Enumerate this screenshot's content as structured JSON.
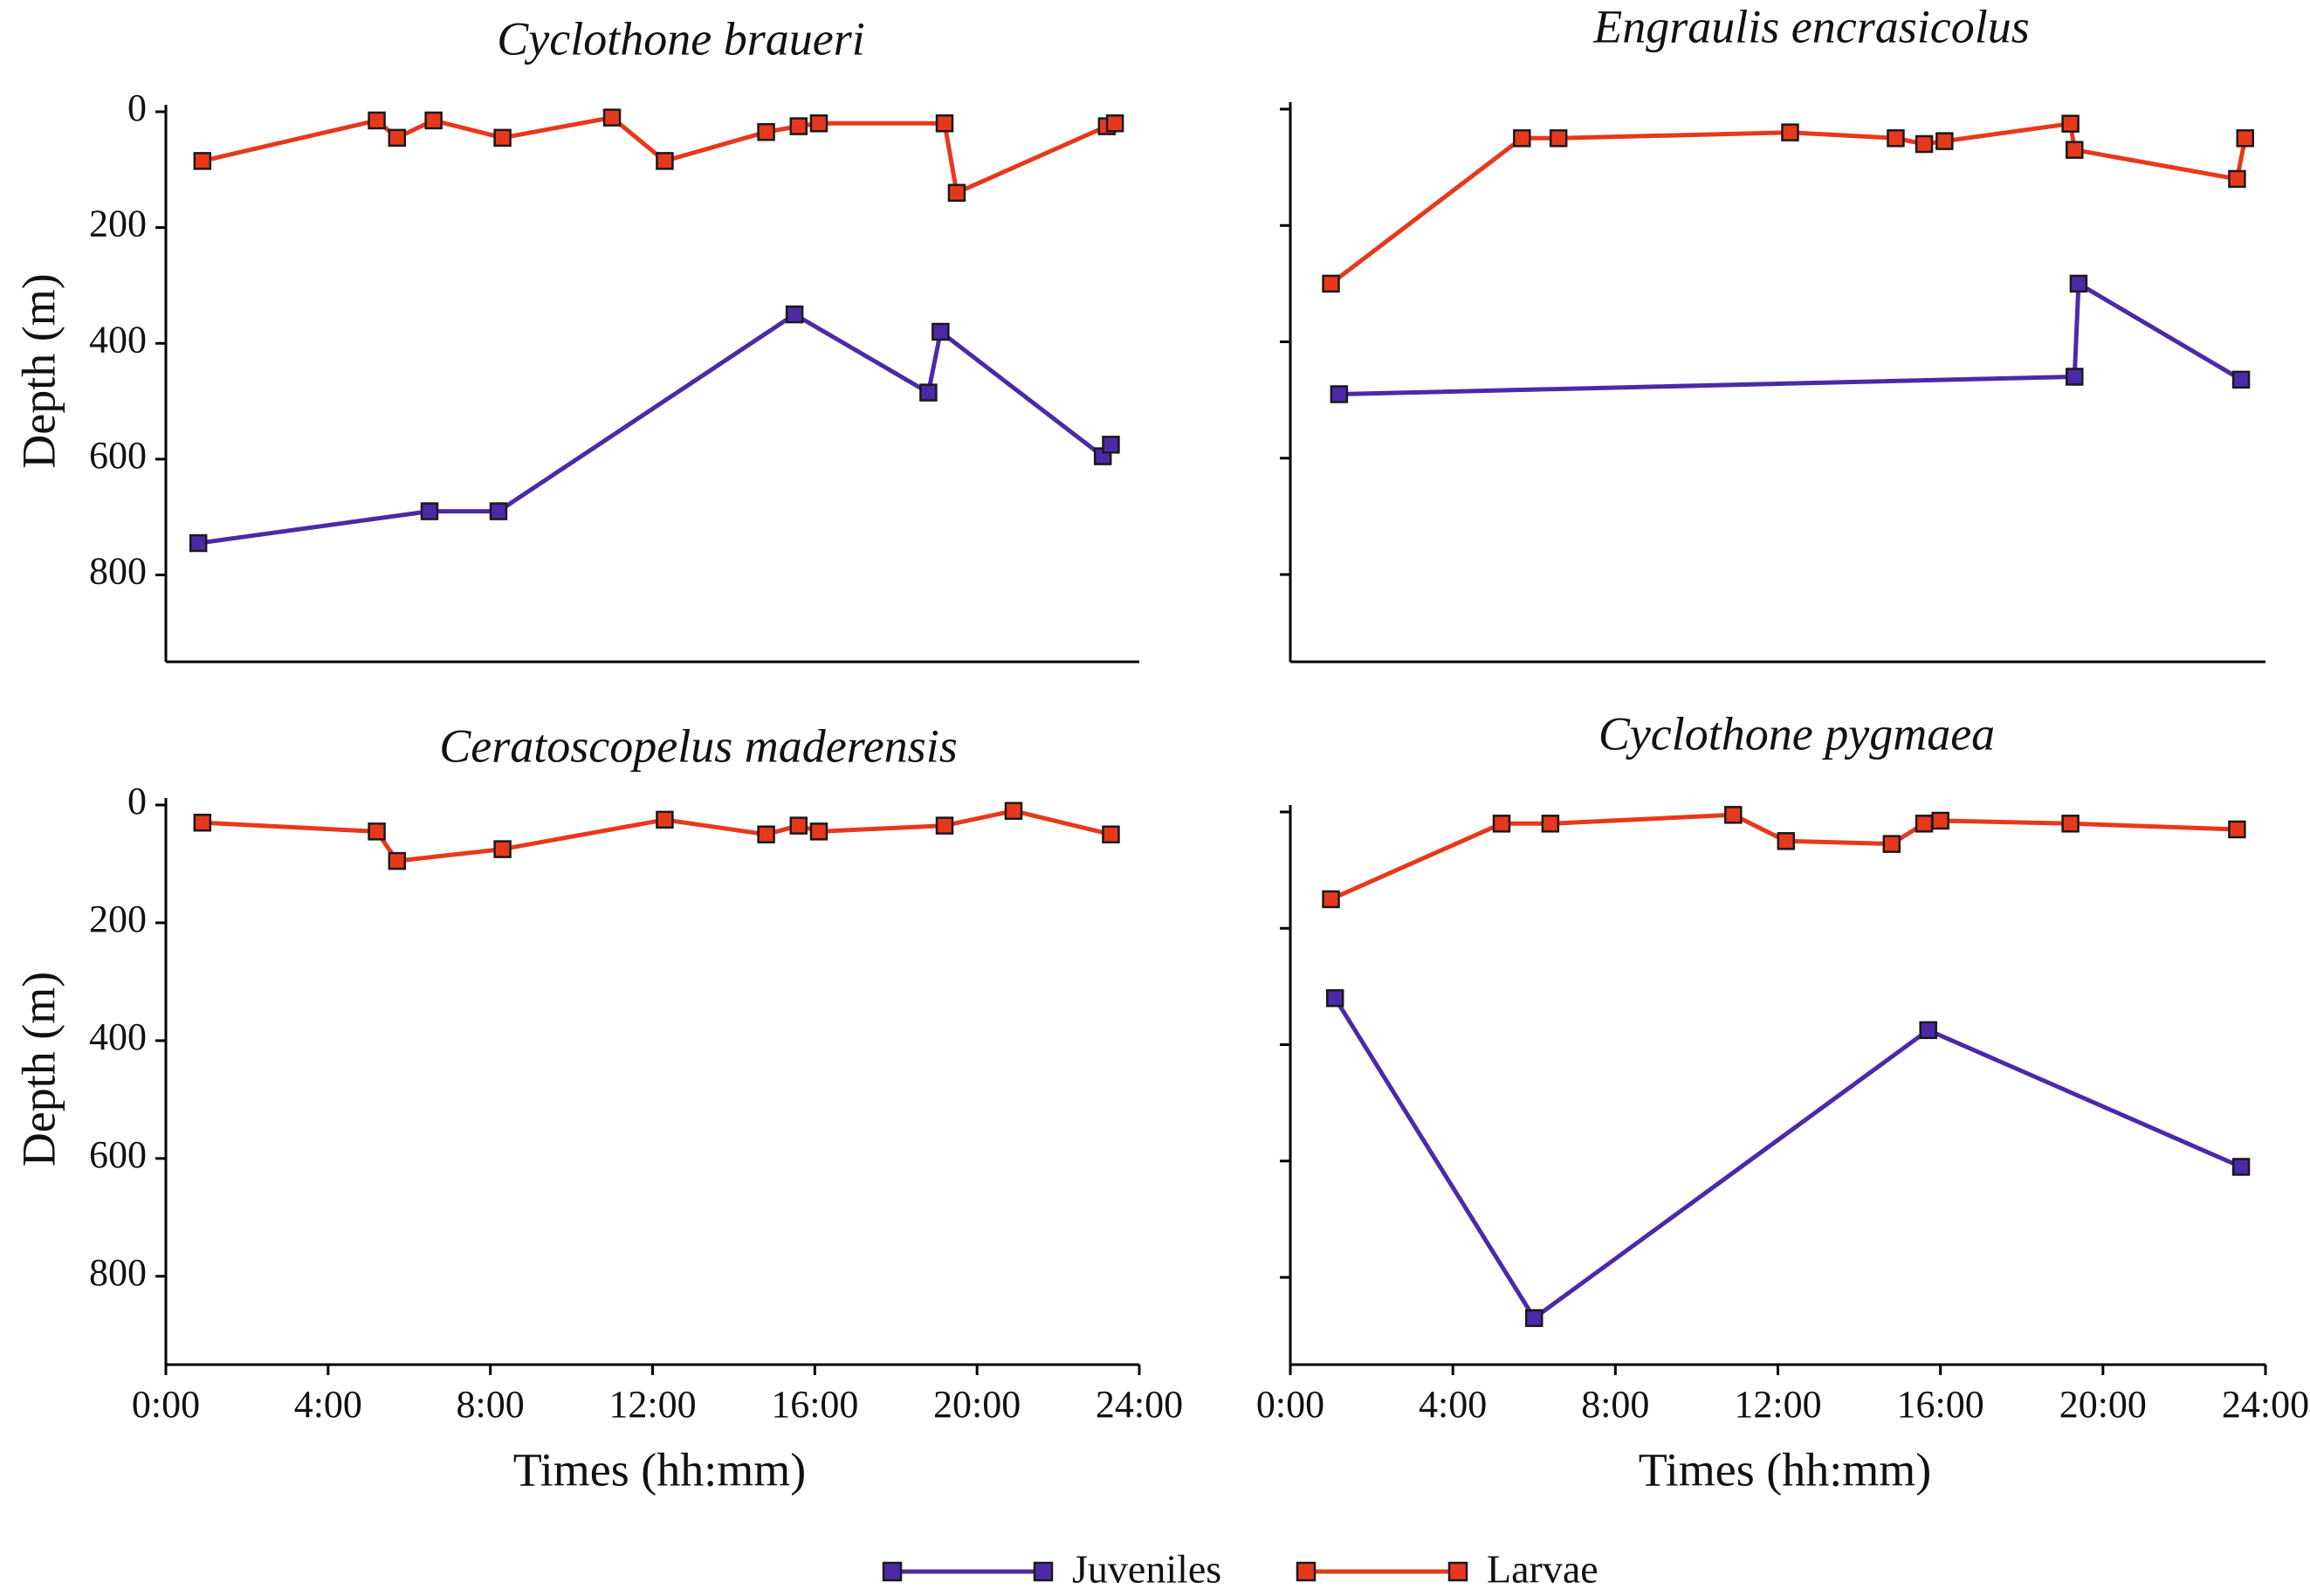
{
  "chart_data": {
    "type": "line",
    "shared": {
      "xlabel": "Times (hh:mm)",
      "ylabel": "Depth (m)",
      "x_ticks": [
        "0:00",
        "4:00",
        "8:00",
        "12:00",
        "16:00",
        "20:00",
        "24:00"
      ],
      "y_ticks": [
        "0",
        "200",
        "400",
        "600",
        "800"
      ],
      "xlim_hours": [
        0,
        24
      ],
      "ylim_m": [
        0,
        950
      ],
      "y_inverted": true,
      "colors": {
        "Juveniles": "#4b2aa8",
        "Larvae": "#e8381c"
      }
    },
    "legend": [
      {
        "name": "Juveniles",
        "label": "Juveniles"
      },
      {
        "name": "Larvae",
        "label": "Larvae"
      }
    ],
    "panels": [
      {
        "title": "Cyclothone braueri",
        "series": [
          {
            "name": "Larvae",
            "x_hours": [
              0.9,
              5.2,
              5.7,
              6.6,
              8.3,
              11.0,
              12.3,
              14.8,
              15.6,
              16.1,
              19.2,
              19.5,
              23.2,
              23.4
            ],
            "y_m": [
              85,
              15,
              45,
              15,
              45,
              10,
              85,
              35,
              25,
              20,
              20,
              140,
              25,
              20
            ]
          },
          {
            "name": "Juveniles",
            "x_hours": [
              0.8,
              6.5,
              8.2,
              15.5,
              18.8,
              19.1,
              23.1,
              23.3
            ],
            "y_m": [
              745,
              690,
              690,
              350,
              485,
              380,
              595,
              575
            ]
          }
        ]
      },
      {
        "title": "Engraulis encrasicolus",
        "series": [
          {
            "name": "Larvae",
            "x_hours": [
              1.0,
              5.7,
              6.6,
              12.3,
              14.9,
              15.6,
              16.1,
              19.2,
              19.3,
              23.3,
              23.5
            ],
            "y_m": [
              300,
              50,
              50,
              40,
              50,
              60,
              55,
              25,
              70,
              120,
              50
            ]
          },
          {
            "name": "Juveniles",
            "x_hours": [
              1.2,
              19.3,
              19.4,
              23.4
            ],
            "y_m": [
              490,
              460,
              300,
              465
            ]
          }
        ]
      },
      {
        "title": "Ceratoscopelus maderensis",
        "series": [
          {
            "name": "Larvae",
            "x_hours": [
              0.9,
              5.2,
              5.7,
              8.3,
              12.3,
              14.8,
              15.6,
              16.1,
              19.2,
              20.9,
              23.3
            ],
            "y_m": [
              30,
              45,
              95,
              75,
              25,
              50,
              35,
              45,
              35,
              10,
              50
            ]
          }
        ]
      },
      {
        "title": "Cyclothone pygmaea",
        "series": [
          {
            "name": "Larvae",
            "x_hours": [
              1.0,
              5.2,
              6.4,
              10.9,
              12.2,
              14.8,
              15.6,
              16.0,
              19.2,
              23.3
            ],
            "y_m": [
              150,
              20,
              20,
              5,
              50,
              55,
              20,
              15,
              20,
              30
            ]
          },
          {
            "name": "Juveniles",
            "x_hours": [
              1.1,
              6.0,
              15.7,
              23.4
            ],
            "y_m": [
              320,
              870,
              375,
              610
            ]
          }
        ]
      }
    ]
  }
}
